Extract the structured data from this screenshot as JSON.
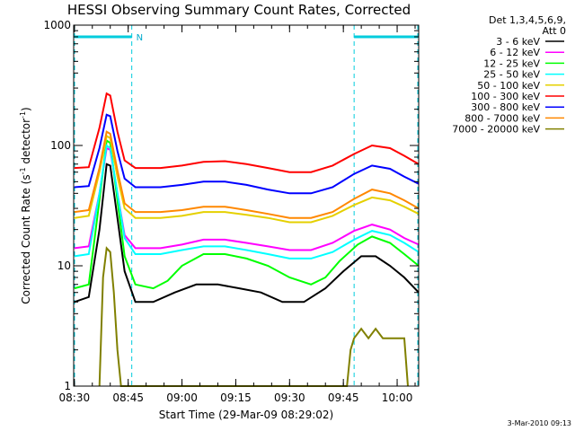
{
  "chart_data": {
    "type": "line",
    "title": "HESSI Observing Summary Count Rates, Corrected",
    "ylabel_main": "Corrected Count Rate (s",
    "ylabel_sup1": "-1",
    "ylabel_mid": " detector",
    "ylabel_sup2": "-1",
    "ylabel_end": ")",
    "xlabel": "Start Time (29-Mar-09 08:29:02)",
    "yscale": "log",
    "ylim": [
      1,
      1000
    ],
    "xlim_minutes": [
      "08:30",
      "10:06"
    ],
    "x_ticks": [
      "08:30",
      "08:45",
      "09:00",
      "09:15",
      "09:30",
      "09:45",
      "10:00"
    ],
    "y_ticks": [
      "1",
      "10",
      "100",
      "1000"
    ],
    "legend_header": [
      "Det 1,3,4,5,6,9,",
      "Att 0"
    ],
    "night_marks": [
      {
        "start": "08:30",
        "end": "08:46",
        "label": "N"
      },
      {
        "start": "09:48",
        "end": "10:06",
        "label": ""
      }
    ],
    "series": [
      {
        "name": "3 - 6 keV",
        "color": "#000000",
        "points": [
          [
            "08:30",
            5
          ],
          [
            "08:34",
            5.5
          ],
          [
            "08:37",
            20
          ],
          [
            "08:39",
            70
          ],
          [
            "08:40",
            68
          ],
          [
            "08:42",
            25
          ],
          [
            "08:44",
            9
          ],
          [
            "08:47",
            5
          ],
          [
            "08:52",
            5
          ],
          [
            "08:58",
            6
          ],
          [
            "09:04",
            7
          ],
          [
            "09:10",
            7
          ],
          [
            "09:16",
            6.5
          ],
          [
            "09:22",
            6
          ],
          [
            "09:28",
            5
          ],
          [
            "09:34",
            5
          ],
          [
            "09:40",
            6.5
          ],
          [
            "09:45",
            9
          ],
          [
            "09:50",
            12
          ],
          [
            "09:54",
            12
          ],
          [
            "09:58",
            10
          ],
          [
            "10:02",
            8
          ],
          [
            "10:06",
            6
          ]
        ]
      },
      {
        "name": "6 - 12 keV",
        "color": "#ff00ff",
        "points": [
          [
            "08:30",
            14
          ],
          [
            "08:34",
            14.5
          ],
          [
            "08:37",
            40
          ],
          [
            "08:39",
            95
          ],
          [
            "08:40",
            92
          ],
          [
            "08:42",
            40
          ],
          [
            "08:44",
            18
          ],
          [
            "08:47",
            14
          ],
          [
            "08:54",
            14
          ],
          [
            "09:00",
            15
          ],
          [
            "09:06",
            16.5
          ],
          [
            "09:12",
            16.5
          ],
          [
            "09:18",
            15.5
          ],
          [
            "09:24",
            14.5
          ],
          [
            "09:30",
            13.5
          ],
          [
            "09:36",
            13.5
          ],
          [
            "09:42",
            15.5
          ],
          [
            "09:48",
            19.5
          ],
          [
            "09:53",
            22
          ],
          [
            "09:58",
            20
          ],
          [
            "10:02",
            17
          ],
          [
            "10:06",
            15
          ]
        ]
      },
      {
        "name": "12 - 25 keV",
        "color": "#00ff00",
        "points": [
          [
            "08:30",
            6.5
          ],
          [
            "08:34",
            7
          ],
          [
            "08:37",
            35
          ],
          [
            "08:39",
            110
          ],
          [
            "08:40",
            105
          ],
          [
            "08:42",
            35
          ],
          [
            "08:44",
            12
          ],
          [
            "08:47",
            7
          ],
          [
            "08:52",
            6.5
          ],
          [
            "08:56",
            7.5
          ],
          [
            "09:00",
            10
          ],
          [
            "09:06",
            12.5
          ],
          [
            "09:12",
            12.5
          ],
          [
            "09:18",
            11.5
          ],
          [
            "09:24",
            10
          ],
          [
            "09:30",
            8
          ],
          [
            "09:36",
            7
          ],
          [
            "09:40",
            8
          ],
          [
            "09:44",
            11
          ],
          [
            "09:49",
            15
          ],
          [
            "09:53",
            17.5
          ],
          [
            "09:58",
            15.5
          ],
          [
            "10:02",
            12.5
          ],
          [
            "10:06",
            10
          ]
        ]
      },
      {
        "name": "25 - 50 keV",
        "color": "#00ffff",
        "points": [
          [
            "08:30",
            12
          ],
          [
            "08:34",
            12.5
          ],
          [
            "08:37",
            40
          ],
          [
            "08:39",
            100
          ],
          [
            "08:40",
            95
          ],
          [
            "08:42",
            40
          ],
          [
            "08:44",
            17
          ],
          [
            "08:47",
            12.5
          ],
          [
            "08:54",
            12.5
          ],
          [
            "09:00",
            13.5
          ],
          [
            "09:06",
            14.5
          ],
          [
            "09:12",
            14.5
          ],
          [
            "09:18",
            13.5
          ],
          [
            "09:24",
            12.5
          ],
          [
            "09:30",
            11.5
          ],
          [
            "09:36",
            11.5
          ],
          [
            "09:42",
            13
          ],
          [
            "09:48",
            16.5
          ],
          [
            "09:53",
            19.5
          ],
          [
            "09:58",
            18
          ],
          [
            "10:02",
            15.5
          ],
          [
            "10:06",
            13
          ]
        ]
      },
      {
        "name": "50 - 100 keV",
        "color": "#e5d000",
        "points": [
          [
            "08:30",
            25
          ],
          [
            "08:34",
            26
          ],
          [
            "08:37",
            60
          ],
          [
            "08:39",
            120
          ],
          [
            "08:40",
            115
          ],
          [
            "08:42",
            55
          ],
          [
            "08:44",
            30
          ],
          [
            "08:47",
            25
          ],
          [
            "08:54",
            25
          ],
          [
            "09:00",
            26
          ],
          [
            "09:06",
            28
          ],
          [
            "09:12",
            28
          ],
          [
            "09:18",
            26.5
          ],
          [
            "09:24",
            25
          ],
          [
            "09:30",
            23
          ],
          [
            "09:36",
            23
          ],
          [
            "09:42",
            26
          ],
          [
            "09:48",
            32
          ],
          [
            "09:53",
            37
          ],
          [
            "09:58",
            35
          ],
          [
            "10:02",
            31
          ],
          [
            "10:06",
            27
          ]
        ]
      },
      {
        "name": "100 - 300 keV",
        "color": "#ff0000",
        "points": [
          [
            "08:30",
            65
          ],
          [
            "08:34",
            66
          ],
          [
            "08:37",
            140
          ],
          [
            "08:39",
            270
          ],
          [
            "08:40",
            260
          ],
          [
            "08:42",
            130
          ],
          [
            "08:44",
            75
          ],
          [
            "08:47",
            65
          ],
          [
            "08:54",
            65
          ],
          [
            "09:00",
            68
          ],
          [
            "09:06",
            73
          ],
          [
            "09:12",
            74
          ],
          [
            "09:18",
            70
          ],
          [
            "09:24",
            65
          ],
          [
            "09:30",
            60
          ],
          [
            "09:36",
            60
          ],
          [
            "09:42",
            68
          ],
          [
            "09:48",
            85
          ],
          [
            "09:53",
            100
          ],
          [
            "09:58",
            95
          ],
          [
            "10:02",
            82
          ],
          [
            "10:06",
            70
          ]
        ]
      },
      {
        "name": "300 - 800 keV",
        "color": "#0000ff",
        "points": [
          [
            "08:30",
            45
          ],
          [
            "08:34",
            46
          ],
          [
            "08:37",
            95
          ],
          [
            "08:39",
            180
          ],
          [
            "08:40",
            175
          ],
          [
            "08:42",
            90
          ],
          [
            "08:44",
            53
          ],
          [
            "08:47",
            45
          ],
          [
            "08:54",
            45
          ],
          [
            "09:00",
            47
          ],
          [
            "09:06",
            50
          ],
          [
            "09:12",
            50
          ],
          [
            "09:18",
            47
          ],
          [
            "09:24",
            43
          ],
          [
            "09:30",
            40
          ],
          [
            "09:36",
            40
          ],
          [
            "09:42",
            45
          ],
          [
            "09:48",
            58
          ],
          [
            "09:53",
            68
          ],
          [
            "09:58",
            64
          ],
          [
            "10:02",
            55
          ],
          [
            "10:06",
            48
          ]
        ]
      },
      {
        "name": "800 - 7000 keV",
        "color": "#ff8800",
        "points": [
          [
            "08:30",
            28
          ],
          [
            "08:34",
            29
          ],
          [
            "08:37",
            65
          ],
          [
            "08:39",
            130
          ],
          [
            "08:40",
            125
          ],
          [
            "08:42",
            62
          ],
          [
            "08:44",
            33
          ],
          [
            "08:47",
            28
          ],
          [
            "08:54",
            28
          ],
          [
            "09:00",
            29
          ],
          [
            "09:06",
            31
          ],
          [
            "09:12",
            31
          ],
          [
            "09:18",
            29
          ],
          [
            "09:24",
            27
          ],
          [
            "09:30",
            25
          ],
          [
            "09:36",
            25
          ],
          [
            "09:42",
            28
          ],
          [
            "09:48",
            36
          ],
          [
            "09:53",
            43
          ],
          [
            "09:58",
            40
          ],
          [
            "10:02",
            35
          ],
          [
            "10:06",
            30
          ]
        ]
      },
      {
        "name": "7000 - 20000 keV",
        "color": "#808000",
        "points": [
          [
            "08:37",
            1
          ],
          [
            "08:38",
            8
          ],
          [
            "08:39",
            14
          ],
          [
            "08:40",
            13
          ],
          [
            "08:41",
            6
          ],
          [
            "08:42",
            2
          ],
          [
            "08:43",
            1
          ],
          [
            "09:46",
            1
          ],
          [
            "09:47",
            2
          ],
          [
            "09:48",
            2.5
          ],
          [
            "09:50",
            3
          ],
          [
            "09:52",
            2.5
          ],
          [
            "09:54",
            3
          ],
          [
            "09:56",
            2.5
          ],
          [
            "09:58",
            2.5
          ],
          [
            "10:00",
            2.5
          ],
          [
            "10:02",
            2.5
          ],
          [
            "10:03",
            1
          ]
        ]
      }
    ],
    "grid": false,
    "legend_position": "right"
  },
  "footer": {
    "timestamp": "3-Mar-2010 09:13"
  }
}
